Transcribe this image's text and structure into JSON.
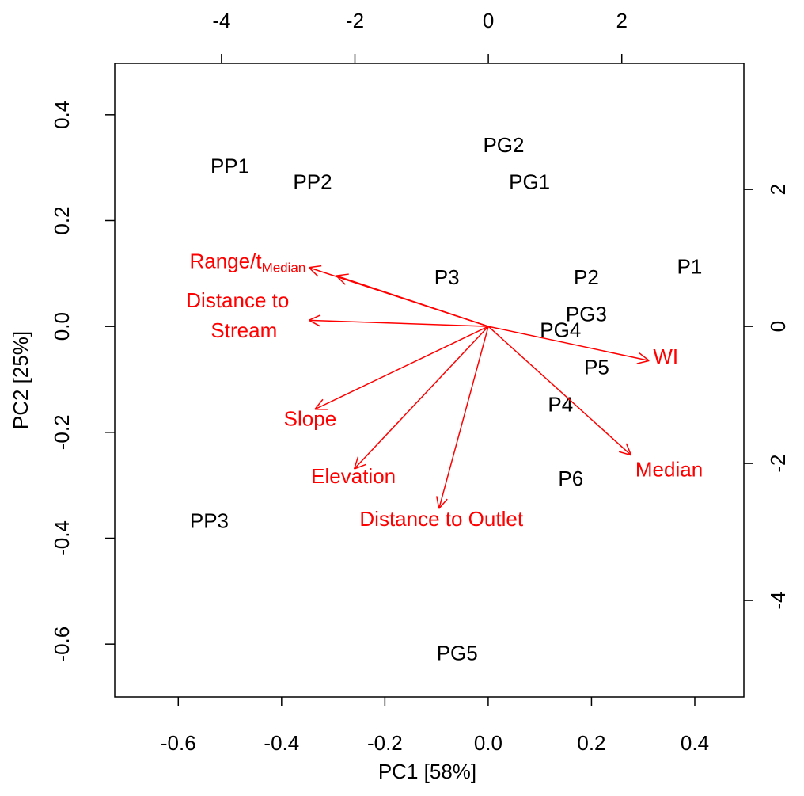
{
  "chart_data": {
    "type": "biplot",
    "xlabel": "PC1 [58%]",
    "ylabel": "PC2 [25%]",
    "xlim": [
      -0.723,
      0.495
    ],
    "ylim": [
      -0.7,
      0.497
    ],
    "xticks": [
      -0.6,
      -0.4,
      -0.2,
      {
        "value": 0,
        "label": "0.0"
      },
      0.2,
      0.4
    ],
    "yticks": [
      -0.6,
      -0.4,
      -0.2,
      {
        "value": 0,
        "label": "0.0"
      },
      0.2,
      0.4
    ],
    "x2lim": [
      -5.6,
      3.83
    ],
    "y2lim": [
      -5.41,
      3.84
    ],
    "x2ticks": [
      -4,
      -2,
      0,
      2
    ],
    "y2ticks": [
      -4,
      -2,
      0,
      2
    ],
    "point_color": "#000000",
    "arrow_color": "#ff0000",
    "points": [
      {
        "name": "PP1",
        "x": -0.5,
        "y": 0.3
      },
      {
        "name": "PP2",
        "x": -0.34,
        "y": 0.27
      },
      {
        "name": "PG2",
        "x": 0.03,
        "y": 0.34
      },
      {
        "name": "PG1",
        "x": 0.08,
        "y": 0.27
      },
      {
        "name": "P3",
        "x": -0.08,
        "y": 0.09
      },
      {
        "name": "P2",
        "x": 0.19,
        "y": 0.09
      },
      {
        "name": "P1",
        "x": 0.39,
        "y": 0.11
      },
      {
        "name": "PG3",
        "x": 0.19,
        "y": 0.02
      },
      {
        "name": "PG4",
        "x": 0.14,
        "y": -0.01
      },
      {
        "name": "P5",
        "x": 0.21,
        "y": -0.08
      },
      {
        "name": "P4",
        "x": 0.14,
        "y": -0.15
      },
      {
        "name": "P6",
        "x": 0.16,
        "y": -0.29
      },
      {
        "name": "PP3",
        "x": -0.54,
        "y": -0.37
      },
      {
        "name": "PG5",
        "x": -0.06,
        "y": -0.62
      }
    ],
    "arrows": [
      {
        "name": "Range/t",
        "sub": "Median",
        "x": -2.69,
        "y": 0.86
      },
      {
        "name": null,
        "x": -2.28,
        "y": 0.74
      },
      {
        "lines": [
          "Distance to",
          "Stream"
        ],
        "x": -2.69,
        "y": 0.09
      },
      {
        "name": "Slope",
        "x": -2.6,
        "y": -1.21
      },
      {
        "name": "Elevation",
        "x": -2.01,
        "y": -2.08
      },
      {
        "name": "Distance to Outlet",
        "x": -0.74,
        "y": -2.66
      },
      {
        "name": "WI",
        "x": 2.41,
        "y": -0.5
      },
      {
        "name": "Median",
        "x": 2.14,
        "y": -1.88
      }
    ]
  }
}
